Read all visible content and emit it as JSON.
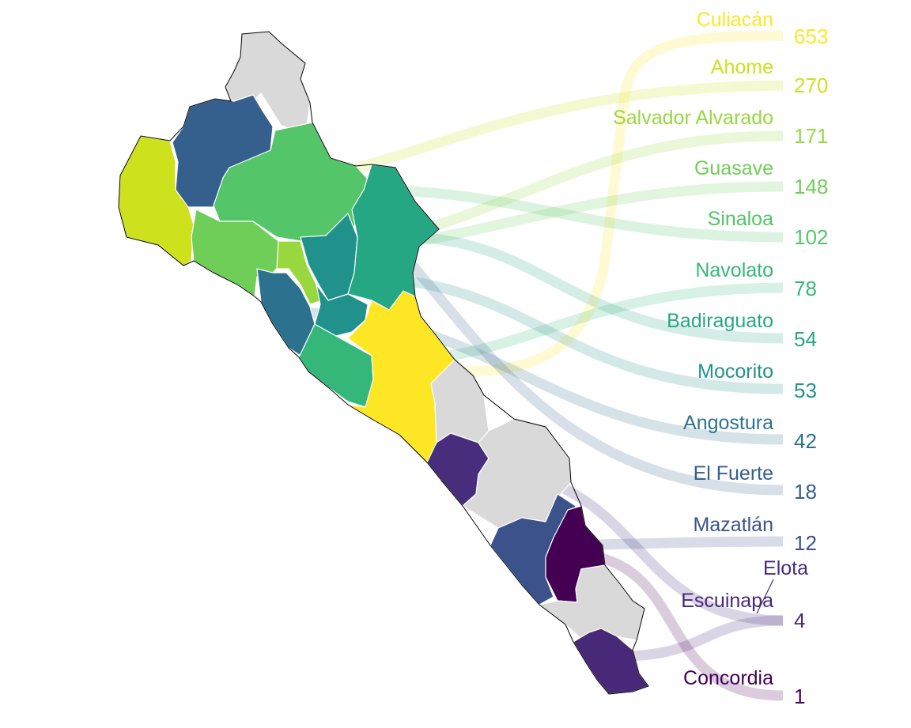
{
  "map": {
    "title": "",
    "municipalities": [
      {
        "id": "culiacan",
        "name": "Culiacán",
        "value": 653,
        "color": "#fde725"
      },
      {
        "id": "ahome",
        "name": "Ahome",
        "value": 270,
        "color": "#cde11d"
      },
      {
        "id": "salvador",
        "name": "Salvador Alvarado",
        "value": 171,
        "color": "#98d83e"
      },
      {
        "id": "guasave",
        "name": "Guasave",
        "value": 148,
        "color": "#6ece58"
      },
      {
        "id": "sinaloa",
        "name": "Sinaloa",
        "value": 102,
        "color": "#54c568"
      },
      {
        "id": "navolato",
        "name": "Navolato",
        "value": 78,
        "color": "#35b779"
      },
      {
        "id": "badiraguato",
        "name": "Badiraguato",
        "value": 54,
        "color": "#26a784"
      },
      {
        "id": "mocorito",
        "name": "Mocorito",
        "value": 53,
        "color": "#21918c"
      },
      {
        "id": "angostura",
        "name": "Angostura",
        "value": 42,
        "color": "#2c728e"
      },
      {
        "id": "elfuerte",
        "name": "El Fuerte",
        "value": 18,
        "color": "#355f8d"
      },
      {
        "id": "mazatlan",
        "name": "Mazatlán",
        "value": 12,
        "color": "#3b528b"
      },
      {
        "id": "elota",
        "name": "Elota",
        "value": 4,
        "color": "#472d7b"
      },
      {
        "id": "escuinapa",
        "name": "Escuinapa",
        "value": 4,
        "color": "#482878"
      },
      {
        "id": "concordia",
        "name": "Concordia",
        "value": 1,
        "color": "#440154"
      }
    ],
    "no_data_color": "#d9d9d9"
  }
}
